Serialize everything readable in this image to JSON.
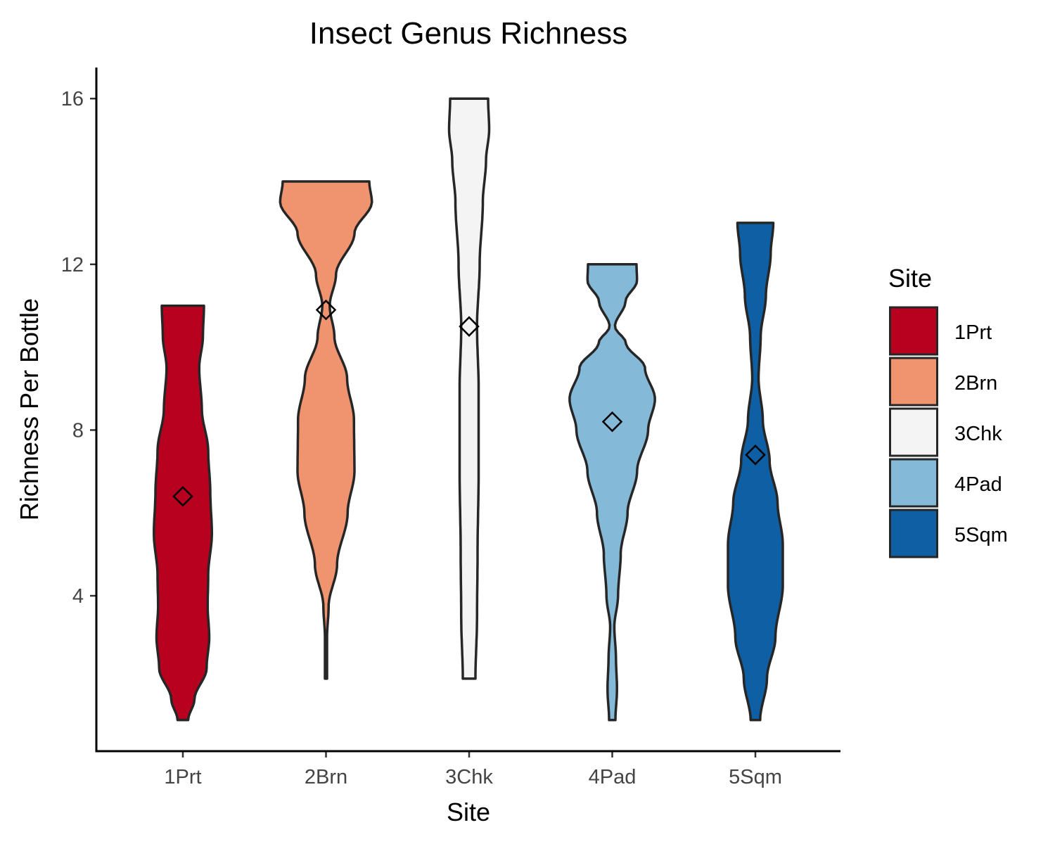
{
  "chart_data": {
    "type": "violin",
    "title": "Insect Genus Richness",
    "xlabel": "Site",
    "ylabel": "Richness Per Bottle",
    "ylim": [
      0.25,
      16.75
    ],
    "yticks": [
      4,
      8,
      12,
      16
    ],
    "grid": false,
    "legend": {
      "title": "Site",
      "position": "right"
    },
    "categories": [
      "1Prt",
      "2Brn",
      "3Chk",
      "4Pad",
      "5Sqm"
    ],
    "series": [
      {
        "name": "1Prt",
        "color": "#B8001F",
        "mean": 6.4,
        "min": 1,
        "max": 11,
        "density": [
          [
            1,
            0.1
          ],
          [
            1.5,
            0.22
          ],
          [
            2.25,
            0.45
          ],
          [
            3,
            0.5
          ],
          [
            3.75,
            0.47
          ],
          [
            4.5,
            0.48
          ],
          [
            5.5,
            0.55
          ],
          [
            6.5,
            0.52
          ],
          [
            7.5,
            0.48
          ],
          [
            8.5,
            0.36
          ],
          [
            9.5,
            0.31
          ],
          [
            10.25,
            0.38
          ],
          [
            11,
            0.4
          ]
        ]
      },
      {
        "name": "2Brn",
        "color": "#EF946F",
        "mean": 10.9,
        "min": 2,
        "max": 14,
        "density": [
          [
            2,
            0.02
          ],
          [
            3,
            0.02
          ],
          [
            3.75,
            0.05
          ],
          [
            4.75,
            0.21
          ],
          [
            6,
            0.41
          ],
          [
            7,
            0.54
          ],
          [
            8.25,
            0.53
          ],
          [
            9.25,
            0.4
          ],
          [
            10.25,
            0.16
          ],
          [
            11,
            0.07
          ],
          [
            11.75,
            0.19
          ],
          [
            12.75,
            0.54
          ],
          [
            13.5,
            0.87
          ],
          [
            14,
            0.82
          ]
        ]
      },
      {
        "name": "3Chk",
        "color": "#F4F4F4",
        "mean": 10.5,
        "min": 2,
        "max": 16,
        "density": [
          [
            2,
            0.12
          ],
          [
            3.5,
            0.15
          ],
          [
            5,
            0.16
          ],
          [
            7,
            0.18
          ],
          [
            9,
            0.18
          ],
          [
            10.5,
            0.15
          ],
          [
            12,
            0.2
          ],
          [
            13.5,
            0.26
          ],
          [
            14.5,
            0.32
          ],
          [
            15.25,
            0.38
          ],
          [
            16,
            0.36
          ]
        ]
      },
      {
        "name": "4Pad",
        "color": "#84B9D8",
        "mean": 8.2,
        "min": 1,
        "max": 12,
        "density": [
          [
            1,
            0.06
          ],
          [
            1.75,
            0.09
          ],
          [
            2.5,
            0.07
          ],
          [
            3.25,
            0.04
          ],
          [
            4,
            0.11
          ],
          [
            5,
            0.16
          ],
          [
            6,
            0.29
          ],
          [
            7,
            0.47
          ],
          [
            8,
            0.68
          ],
          [
            8.75,
            0.81
          ],
          [
            9.5,
            0.62
          ],
          [
            10.1,
            0.26
          ],
          [
            10.5,
            0.05
          ],
          [
            11.1,
            0.25
          ],
          [
            11.6,
            0.47
          ],
          [
            12,
            0.46
          ]
        ]
      },
      {
        "name": "5Sqm",
        "color": "#0E5FA3",
        "mean": 7.4,
        "min": 1,
        "max": 13,
        "density": [
          [
            1,
            0.09
          ],
          [
            2,
            0.22
          ],
          [
            3,
            0.38
          ],
          [
            4.25,
            0.52
          ],
          [
            5.25,
            0.52
          ],
          [
            6.25,
            0.42
          ],
          [
            7.25,
            0.27
          ],
          [
            8.25,
            0.14
          ],
          [
            9.25,
            0.06
          ],
          [
            10.25,
            0.1
          ],
          [
            11.25,
            0.2
          ],
          [
            12.25,
            0.29
          ],
          [
            13,
            0.34
          ]
        ]
      }
    ]
  }
}
